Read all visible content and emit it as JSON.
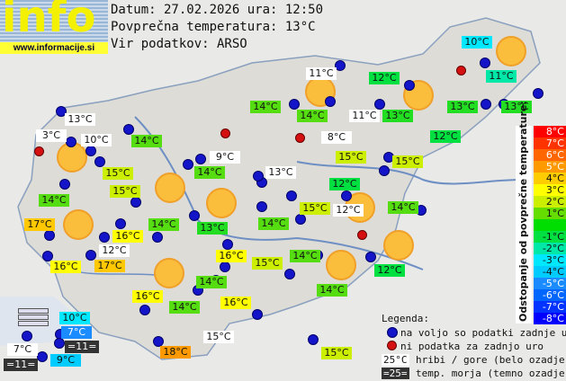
{
  "logo": {
    "text": "info",
    "url": "www.informacije.si"
  },
  "header": {
    "date_line": "Datum: 27.02.2026 ura: 12:50",
    "avg_line": "Povprečna temperatura: 13°C",
    "source_line": "Vir podatkov: ARSO"
  },
  "colors": {
    "white": "#ffffff",
    "cyan10": "#00e8ff",
    "green11": "#00e8a8",
    "green12": "#00e040",
    "green13": "#22dd22",
    "lime14": "#55dd11",
    "yg15": "#ccee00",
    "yellow16": "#ffff00",
    "orange17": "#ffc800",
    "orange18": "#ff9900",
    "cyan9": "#00ccff",
    "blue7": "#1a8cff",
    "sea": "#333333",
    "station_ok": "#1414c8",
    "station_missing": "#d41010",
    "sun": "#fbbd3c"
  },
  "stations": [
    {
      "t": "10°C",
      "c": "cyan10"
    },
    {
      "t": "11°C",
      "c": "white"
    },
    {
      "t": "12°C",
      "c": "green12"
    },
    {
      "t": "11°C",
      "c": "green11"
    },
    {
      "t": "14°C",
      "c": "lime14"
    },
    {
      "t": "14°C",
      "c": "lime14"
    },
    {
      "t": "11°C",
      "c": "white"
    },
    {
      "t": "13°C",
      "c": "green13"
    },
    {
      "t": "13°C",
      "c": "green13"
    },
    {
      "t": "13°C",
      "c": "green13"
    },
    {
      "t": "13°C",
      "c": "white"
    },
    {
      "t": "3°C",
      "c": "white"
    },
    {
      "t": "10°C",
      "c": "white"
    },
    {
      "t": "14°C",
      "c": "lime14"
    },
    {
      "t": "8°C",
      "c": "white"
    },
    {
      "t": "12°C",
      "c": "green12"
    },
    {
      "t": "9°C",
      "c": "white"
    },
    {
      "t": "15°C",
      "c": "yg15"
    },
    {
      "t": "15°C",
      "c": "yg15"
    },
    {
      "t": "14°C",
      "c": "lime14"
    },
    {
      "t": "15°C",
      "c": "yg15"
    },
    {
      "t": "13°C",
      "c": "white"
    },
    {
      "t": "12°C",
      "c": "green12"
    },
    {
      "t": "15°C",
      "c": "yg15"
    },
    {
      "t": "14°C",
      "c": "lime14"
    },
    {
      "t": "15°C",
      "c": "yg15"
    },
    {
      "t": "12°C",
      "c": "white"
    },
    {
      "t": "14°C",
      "c": "lime14"
    },
    {
      "t": "17°C",
      "c": "orange17"
    },
    {
      "t": "14°C",
      "c": "lime14"
    },
    {
      "t": "13°C",
      "c": "green13"
    },
    {
      "t": "14°C",
      "c": "lime14"
    },
    {
      "t": "16°C",
      "c": "yellow16"
    },
    {
      "t": "12°C",
      "c": "white"
    },
    {
      "t": "16°C",
      "c": "yellow16"
    },
    {
      "t": "15°C",
      "c": "yg15"
    },
    {
      "t": "14°C",
      "c": "lime14"
    },
    {
      "t": "16°C",
      "c": "yellow16"
    },
    {
      "t": "17°C",
      "c": "orange17"
    },
    {
      "t": "12°C",
      "c": "green12"
    },
    {
      "t": "14°C",
      "c": "lime14"
    },
    {
      "t": "14°C",
      "c": "lime14"
    },
    {
      "t": "16°C",
      "c": "yellow16"
    },
    {
      "t": "14°C",
      "c": "lime14"
    },
    {
      "t": "16°C",
      "c": "yellow16"
    },
    {
      "t": "10°C",
      "c": "cyan10"
    },
    {
      "t": "7°C",
      "c": "blue7"
    },
    {
      "t": "=11=",
      "c": "sea"
    },
    {
      "t": "15°C",
      "c": "white"
    },
    {
      "t": "7°C",
      "c": "white"
    },
    {
      "t": "18°C",
      "c": "orange18"
    },
    {
      "t": "9°C",
      "c": "cyan9"
    },
    {
      "t": "=11=",
      "c": "sea"
    },
    {
      "t": "15°C",
      "c": "yg15"
    }
  ],
  "scale": {
    "title": "Odstopanje od povprečne temperature:",
    "steps": [
      {
        "t": "8°C",
        "c": "#ff0000"
      },
      {
        "t": "7°C",
        "c": "#ff3300"
      },
      {
        "t": "6°C",
        "c": "#ff6600"
      },
      {
        "t": "5°C",
        "c": "#ff9900"
      },
      {
        "t": "4°C",
        "c": "#ffcc00"
      },
      {
        "t": "3°C",
        "c": "#ffff00"
      },
      {
        "t": "2°C",
        "c": "#ccee00"
      },
      {
        "t": "1°C",
        "c": "#66dd00"
      },
      {
        "t": "",
        "c": "#00dd00"
      },
      {
        "t": "-1°C",
        "c": "#00e040"
      },
      {
        "t": "-2°C",
        "c": "#00e8a8"
      },
      {
        "t": "-3°C",
        "c": "#00e8ff"
      },
      {
        "t": "-4°C",
        "c": "#00ccff"
      },
      {
        "t": "-5°C",
        "c": "#1a8cff"
      },
      {
        "t": "-6°C",
        "c": "#0066ff"
      },
      {
        "t": "-7°C",
        "c": "#0033ff"
      },
      {
        "t": "-8°C",
        "c": "#0000ff"
      }
    ]
  },
  "legend": {
    "title": "Legenda:",
    "ok": "na voljo so podatki zadnje ure",
    "missing": "ni podatka za zadnjo uro",
    "mountain_sample": "25°C",
    "mountain": "hribi / gore (belo ozadje)",
    "sea_sample": "=25=",
    "sea": "temp. morja (temno ozadje)"
  },
  "weather_icons": [
    "sunny",
    "sunny",
    "sunny",
    "sunny",
    "sunny",
    "sunny",
    "sunny",
    "sunny",
    "sunny",
    "sunny",
    "sunny"
  ]
}
